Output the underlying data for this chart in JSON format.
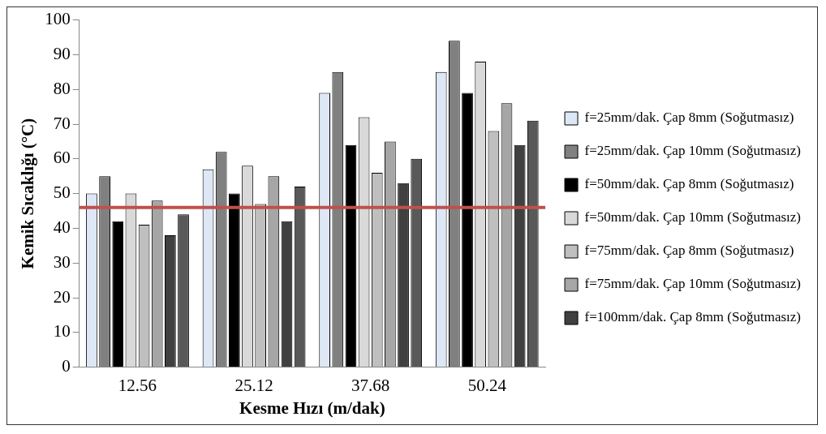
{
  "chart_data": {
    "type": "bar",
    "xlabel": "Kesme Hızı (m/dak)",
    "ylabel": "Kemik Sıcaklığı (°C)",
    "categories": [
      "12.56",
      "25.12",
      "37.68",
      "50.24"
    ],
    "series": [
      {
        "name": "f=25mm/dak. Çap 8mm (Soğutmasız)",
        "color": "#dde7f5",
        "values": [
          50,
          57,
          79,
          85
        ]
      },
      {
        "name": "f=25mm/dak. Çap 10mm (Soğutmasız)",
        "color": "#808080",
        "values": [
          55,
          62,
          85,
          94
        ]
      },
      {
        "name": "f=50mm/dak. Çap 8mm (Soğutmasız)",
        "color": "#000000",
        "values": [
          42,
          50,
          64,
          79
        ]
      },
      {
        "name": "f=50mm/dak. Çap 10mm (Soğutmasız)",
        "color": "#d9d9d9",
        "values": [
          50,
          58,
          72,
          88
        ]
      },
      {
        "name": "f=75mm/dak. Çap 8mm (Soğutmasız)",
        "color": "#bfbfbf",
        "values": [
          41,
          47,
          56,
          68
        ]
      },
      {
        "name": "f=75mm/dak. Çap 10mm (Soğutmasız)",
        "color": "#a6a6a6",
        "values": [
          48,
          55,
          65,
          76
        ]
      },
      {
        "name": "f=100mm/dak. Çap 8mm (Soğutmasız)",
        "color": "#404040",
        "values": [
          38,
          42,
          53,
          64
        ]
      },
      {
        "color": "#595959",
        "values": [
          44,
          52,
          60,
          71
        ]
      }
    ],
    "ylim": [
      0,
      100
    ],
    "yticks": [
      0,
      10,
      20,
      30,
      40,
      50,
      60,
      70,
      80,
      90,
      100
    ],
    "grid": false,
    "legend": "right",
    "ref_lines": [
      {
        "axis": "y",
        "value": 46,
        "color": "#c0504d"
      }
    ]
  }
}
